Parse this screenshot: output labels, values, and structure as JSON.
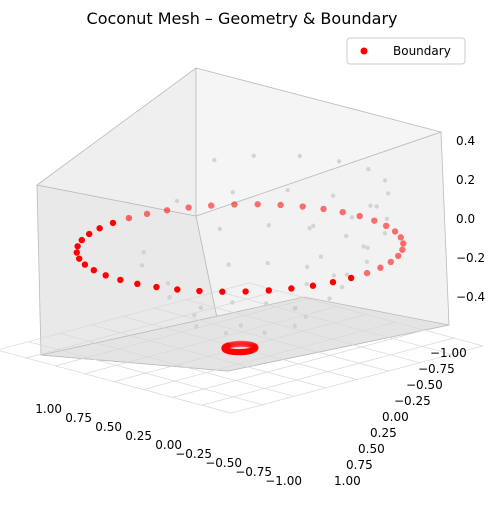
{
  "chart_data": {
    "type": "scatter",
    "projection": "3d",
    "title": "Coconut Mesh – Geometry & Boundary",
    "xlabel": "",
    "ylabel": "",
    "zlabel": "",
    "xlim": [
      -1.0,
      1.0
    ],
    "ylim": [
      -1.0,
      1.0
    ],
    "zlim": [
      -0.5,
      0.4
    ],
    "x_ticks": [
      "1.00",
      "0.75",
      "0.50",
      "0.25",
      "0.00",
      "−0.25",
      "−0.50",
      "−0.75",
      "−1.00"
    ],
    "y_ticks": [
      "−1.00",
      "−0.75",
      "−0.50",
      "−0.25",
      "0.00",
      "0.25",
      "0.50",
      "0.75",
      "1.00"
    ],
    "z_ticks": [
      "−0.4",
      "−0.2",
      "0.0",
      "0.2",
      "0.4"
    ],
    "grid": true,
    "legend_position": "top-right",
    "colors": {
      "geometry": "#cccccc",
      "boundary": "#ff0000",
      "pane": "#f2f2f2"
    },
    "series": [
      {
        "name": "",
        "role": "geometry",
        "description_points": "interior mesh vertices (gray)",
        "points": [
          [
            0.65,
            -0.4,
            0.27
          ],
          [
            0.55,
            -0.62,
            0.27
          ],
          [
            0.35,
            -0.8,
            0.27
          ],
          [
            0.1,
            -0.88,
            0.27
          ],
          [
            -0.15,
            -0.88,
            0.27
          ],
          [
            -0.4,
            -0.78,
            0.27
          ],
          [
            -0.62,
            -0.6,
            0.27
          ],
          [
            -0.78,
            -0.36,
            0.27
          ],
          [
            -0.85,
            -0.1,
            0.27
          ],
          [
            -0.82,
            0.18,
            0.27
          ],
          [
            0.7,
            -0.15,
            0.1
          ],
          [
            0.6,
            -0.5,
            0.1
          ],
          [
            0.4,
            -0.75,
            0.1
          ],
          [
            0.12,
            -0.85,
            0.1
          ],
          [
            -0.2,
            -0.85,
            0.1
          ],
          [
            -0.48,
            -0.72,
            0.1
          ],
          [
            -0.7,
            -0.5,
            0.1
          ],
          [
            -0.82,
            -0.22,
            0.1
          ],
          [
            -0.8,
            0.1,
            0.1
          ],
          [
            0.62,
            0.3,
            0.1
          ],
          [
            0.55,
            -0.35,
            -0.05
          ],
          [
            0.4,
            -0.6,
            -0.05
          ],
          [
            0.18,
            -0.72,
            -0.05
          ],
          [
            -0.1,
            -0.75,
            -0.05
          ],
          [
            -0.38,
            -0.66,
            -0.05
          ],
          [
            -0.6,
            -0.45,
            -0.05
          ],
          [
            -0.72,
            -0.18,
            -0.05
          ],
          [
            -0.7,
            0.12,
            -0.05
          ],
          [
            0.5,
            0.3,
            -0.05
          ],
          [
            0.3,
            0.5,
            -0.05
          ],
          [
            0.42,
            -0.3,
            -0.2
          ],
          [
            0.28,
            -0.48,
            -0.2
          ],
          [
            0.05,
            -0.58,
            -0.2
          ],
          [
            -0.2,
            -0.56,
            -0.2
          ],
          [
            -0.42,
            -0.42,
            -0.2
          ],
          [
            -0.55,
            -0.2,
            -0.2
          ],
          [
            -0.56,
            0.08,
            -0.2
          ],
          [
            0.38,
            0.22,
            -0.2
          ],
          [
            0.15,
            0.42,
            -0.2
          ],
          [
            -0.15,
            0.45,
            -0.2
          ],
          [
            0.28,
            -0.2,
            -0.35
          ],
          [
            0.12,
            -0.32,
            -0.35
          ],
          [
            -0.08,
            -0.36,
            -0.35
          ],
          [
            -0.26,
            -0.28,
            -0.35
          ],
          [
            -0.36,
            -0.1,
            -0.35
          ],
          [
            -0.34,
            0.12,
            -0.35
          ],
          [
            0.24,
            0.14,
            -0.35
          ],
          [
            0.05,
            0.3,
            -0.35
          ],
          [
            -0.18,
            0.28,
            -0.35
          ],
          [
            0.1,
            -0.1,
            -0.42
          ]
        ]
      },
      {
        "name": "Boundary",
        "role": "boundary",
        "outer_ring": {
          "radius": 0.95,
          "z": 0.0,
          "count": 44
        },
        "inner_ring": {
          "radius": 0.09,
          "z": -0.5,
          "count": 36
        }
      }
    ]
  }
}
